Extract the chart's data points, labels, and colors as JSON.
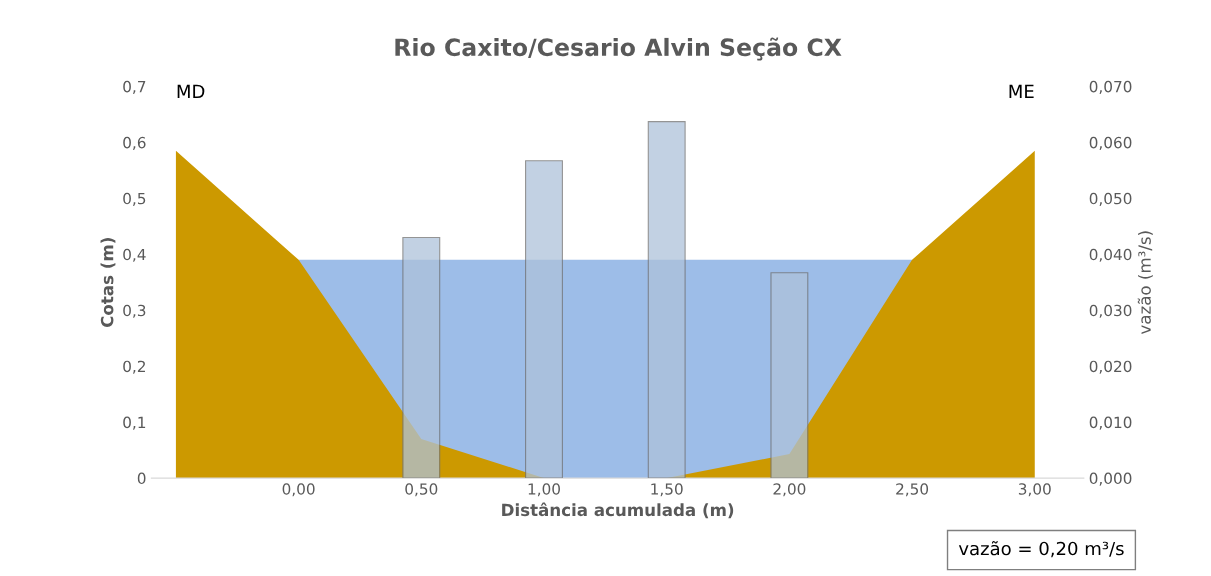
{
  "chart_data": {
    "type": "area",
    "title": "Rio Caxito/Cesario Alvin Seção CX",
    "xlabel": "Distância acumulada (m)",
    "ylabel": "Cotas (m)",
    "y2label": "vazão (m³/s)",
    "xlim": [
      -0.6,
      3.2
    ],
    "xticks": [
      {
        "value": 0,
        "label": "0,00"
      },
      {
        "value": 0.5,
        "label": "0,50"
      },
      {
        "value": 1,
        "label": "1,00"
      },
      {
        "value": 1.5,
        "label": "1,50"
      },
      {
        "value": 2,
        "label": "2,00"
      },
      {
        "value": 2.5,
        "label": "2,50"
      },
      {
        "value": 3,
        "label": "3,00"
      }
    ],
    "ylim": [
      0,
      0.7
    ],
    "yticks": [
      0,
      {
        "value": 0.1,
        "label": "0,1"
      },
      {
        "value": 0.2,
        "label": "0,2"
      },
      {
        "value": 0.3,
        "label": "0,3"
      },
      {
        "value": 0.4,
        "label": "0,4"
      },
      {
        "value": 0.5,
        "label": "0,5"
      },
      {
        "value": 0.6,
        "label": "0,6"
      },
      {
        "value": 0.7,
        "label": "0,7"
      }
    ],
    "y2lim": [
      0,
      0.07
    ],
    "y2ticks": [
      {
        "value": 0,
        "label": "0,000"
      },
      {
        "value": 0.01,
        "label": "0,010"
      },
      {
        "value": 0.02,
        "label": "0,020"
      },
      {
        "value": 0.03,
        "label": "0,030"
      },
      {
        "value": 0.04,
        "label": "0,040"
      },
      {
        "value": 0.05,
        "label": "0,050"
      },
      {
        "value": 0.06,
        "label": "0,060"
      },
      {
        "value": 0.07,
        "label": "0,070"
      }
    ],
    "grid": false,
    "series": [
      {
        "color": "#9dbde8",
        "x": [
          0,
          2.5
        ],
        "values": [
          0.39,
          0.39
        ]
      },
      {
        "type": "area",
        "color": "#cc9900",
        "x": [
          -0.5,
          0,
          0.5,
          1,
          1.5,
          2,
          2.5,
          3
        ],
        "values": [
          0.585,
          0.39,
          0.07,
          0,
          0,
          0.043,
          0.39,
          0.585
        ]
      },
      {
        "type": "bar",
        "axis": "y2",
        "color": "#aec2da",
        "x": [
          0.5,
          1,
          1.5,
          2
        ],
        "values": [
          0.043,
          0.0567,
          0.0637,
          0.0367
        ]
      }
    ],
    "annotations": [
      {
        "text": "MD",
        "x": -0.5,
        "y": 0.585
      },
      {
        "text": "ME",
        "x": 3,
        "y": 0.585
      },
      "vazão = 0,20 m³/s"
    ]
  }
}
